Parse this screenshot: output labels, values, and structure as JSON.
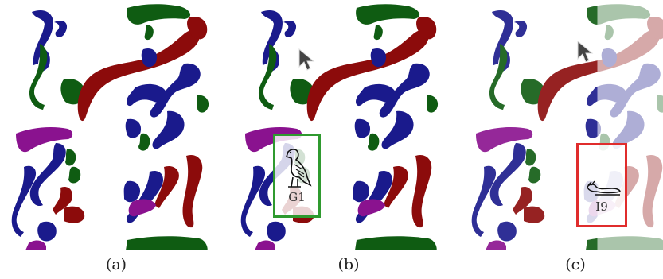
{
  "colors": {
    "blue": "#1a1a8c",
    "green": "#0f5c12",
    "red": "#8c0b0b",
    "purple": "#8a128f",
    "correct": "#2f9a2f",
    "wrong": "#e02c2c"
  },
  "panels": [
    {
      "caption": "(a)"
    },
    {
      "caption": "(b)",
      "glyph": {
        "code": "G1",
        "status": "correct",
        "icon": "vulture-hieroglyph-icon"
      }
    },
    {
      "caption": "(c)",
      "glyph": {
        "code": "I9",
        "status": "wrong",
        "icon": "horned-viper-hieroglyph-icon"
      }
    }
  ]
}
